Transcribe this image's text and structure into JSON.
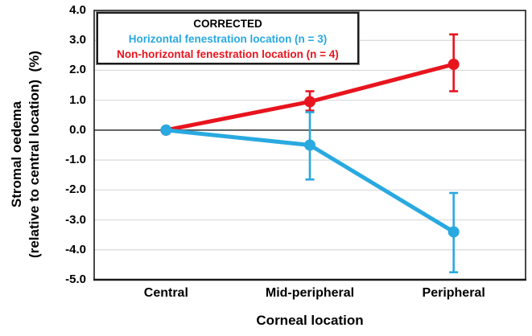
{
  "figure": {
    "background": "#ffffff",
    "border_color": "#1a1a1a"
  },
  "chart_data": {
    "type": "line",
    "title": "",
    "xlabel": "Corneal location",
    "ylabel_line1": "Stromal oedema",
    "ylabel_line2": "(relative to central location)  (%)",
    "categories": [
      "Central",
      "Mid-peripheral",
      "Peripheral"
    ],
    "ylim": [
      -5.0,
      4.0
    ],
    "ytick_labels": [
      "4.0",
      "3.0",
      "2.0",
      "1.0",
      "0.0",
      "-1.0",
      "-2.0",
      "-3.0",
      "-4.0",
      "-5.0"
    ],
    "grid": {
      "horizontal": true,
      "color": "#d9d9d9",
      "zero_line_color": "#4d4d4d"
    },
    "legend": {
      "position": "top-left-inside",
      "title": "CORRECTED",
      "title_color": "#000000"
    },
    "series": [
      {
        "name": "Horizontal fenestration location (n = 3)",
        "color": "#29a9e0",
        "values": [
          0.0,
          -0.5,
          -3.4
        ],
        "error_upper": [
          null,
          0.6,
          -2.1
        ],
        "error_lower": [
          null,
          -1.65,
          -4.75
        ]
      },
      {
        "name": "Non-horizontal fenestration location (n = 4)",
        "color": "#e8141e",
        "values": [
          0.0,
          0.95,
          2.2
        ],
        "error_upper": [
          null,
          1.3,
          3.2
        ],
        "error_lower": [
          null,
          0.65,
          1.3
        ]
      }
    ]
  }
}
